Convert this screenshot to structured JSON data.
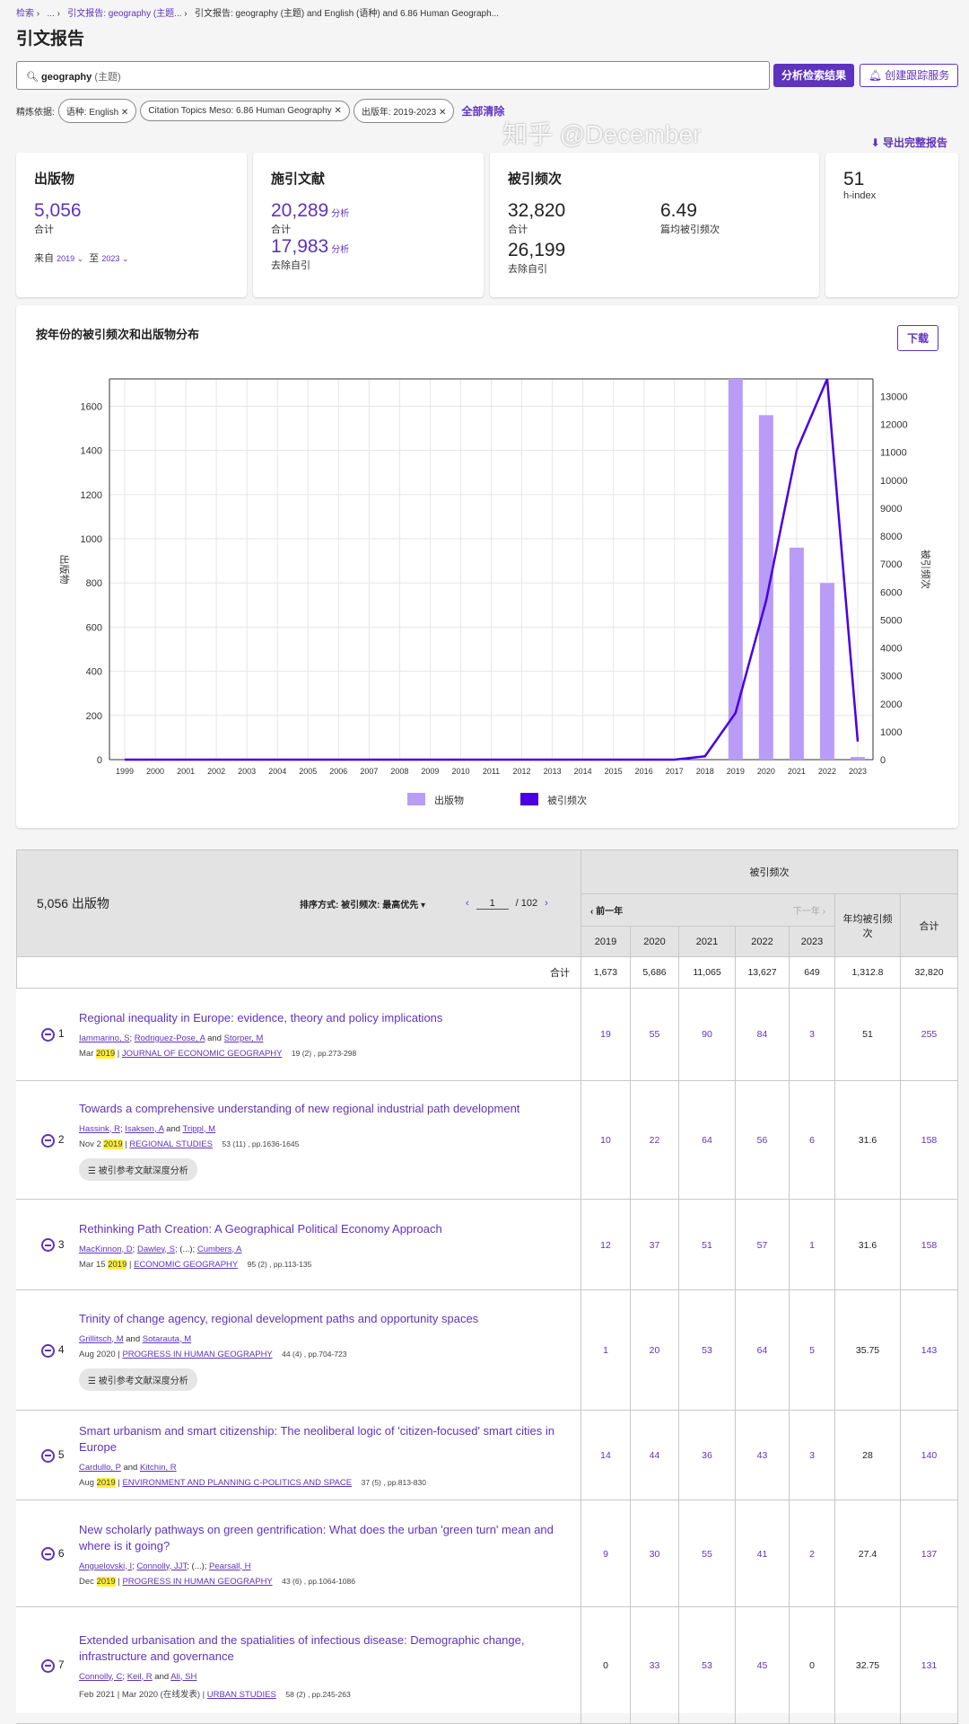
{
  "breadcrumb": [
    "检索",
    "...",
    "引文报告: geography (主题...",
    "引文报告: geography (主题) and English (语种) and 6.86 Human Geograph..."
  ],
  "page_title": "引文报告",
  "search": {
    "term": "geography",
    "field": "(主题)",
    "analyze_label": "分析检索结果",
    "alert_label": "创建跟踪服务"
  },
  "filters": {
    "label": "精炼依据:",
    "chips": [
      "语种: English",
      "Citation Topics Meso: 6.86 Human Geography",
      "出版年: 2019-2023"
    ],
    "clear_label": "全部清除"
  },
  "export_label": "导出完整报告",
  "cards": {
    "pubs": {
      "title": "出版物",
      "value": "5,056",
      "sub": "合计",
      "from_label": "来自",
      "from": "2019",
      "to_label": "至",
      "to": "2023"
    },
    "citing": {
      "title": "施引文献",
      "value": "20,289",
      "value_link": "分析",
      "sub": "合计",
      "value2": "17,983",
      "value2_link": "分析",
      "sub2": "去除自引"
    },
    "cites": {
      "title": "被引频次",
      "value": "32,820",
      "sub": "合计",
      "avg": "6.49",
      "avg_label": "篇均被引频次",
      "value2": "26,199",
      "sub2": "去除自引"
    },
    "hindex": {
      "value": "51",
      "label": "h-index"
    }
  },
  "chart_section": {
    "title": "按年份的被引频次和出版物分布",
    "download_label": "下载"
  },
  "chart_data": {
    "type": "bar+line",
    "categories": [
      "1999",
      "2000",
      "2001",
      "2002",
      "2003",
      "2004",
      "2005",
      "2006",
      "2007",
      "2008",
      "2009",
      "2010",
      "2011",
      "2012",
      "2013",
      "2014",
      "2015",
      "2016",
      "2017",
      "2018",
      "2019",
      "2020",
      "2021",
      "2022",
      "2023"
    ],
    "series": [
      {
        "name": "出版物",
        "type": "bar",
        "axis": "left",
        "color": "#b99cf7",
        "values": [
          0,
          0,
          0,
          0,
          0,
          0,
          0,
          0,
          0,
          0,
          0,
          0,
          0,
          0,
          0,
          0,
          0,
          0,
          0,
          0,
          1724,
          1560,
          960,
          800,
          12
        ]
      },
      {
        "name": "被引频次",
        "type": "line",
        "axis": "right",
        "color": "#4a00e0",
        "values": [
          0,
          0,
          0,
          0,
          0,
          0,
          0,
          0,
          0,
          0,
          0,
          0,
          0,
          0,
          0,
          0,
          0,
          0,
          0,
          120,
          1673,
          5686,
          11065,
          13627,
          649
        ]
      }
    ],
    "ylabel_left": "出版物",
    "ylabel_right": "被引频次",
    "ylim_left": [
      0,
      1724
    ],
    "yticks_left": [
      0,
      200,
      400,
      600,
      800,
      1000,
      1200,
      1400,
      1600
    ],
    "ylim_right": [
      0,
      13627
    ],
    "yticks_right": [
      0,
      1000,
      2000,
      3000,
      4000,
      5000,
      6000,
      7000,
      8000,
      9000,
      10000,
      11000,
      12000,
      13000
    ],
    "grid": true,
    "legend": "bottom"
  },
  "table": {
    "count_label": "5,056 出版物",
    "sort_label": "排序方式: 被引频次: 最高优先",
    "page": "1",
    "pages": "/ 102",
    "cites_header": "被引频次",
    "prev_year": "前一年",
    "next_year": "下一年",
    "years": [
      "2019",
      "2020",
      "2021",
      "2022",
      "2023"
    ],
    "avg_header": "年均被引频次",
    "total_header": "合计",
    "totals_label": "合计",
    "totals": [
      "1,673",
      "5,686",
      "11,065",
      "13,627",
      "649",
      "1,312.8",
      "32,820"
    ],
    "deep_label": "被引参考文献深度分析",
    "rows": [
      {
        "n": "1",
        "title": "Regional inequality in Europe: evidence, theory and policy implications",
        "authors": [
          "Iammarino, S",
          "Rodriguez-Pose, A",
          "Storper, M"
        ],
        "auth_sep": [
          "; ",
          " and "
        ],
        "date": "Mar",
        "year": "2019",
        "journal": "JOURNAL OF ECONOMIC GEOGRAPHY",
        "vol": "19 (2) , pp.273-298",
        "cites": [
          "19",
          "55",
          "90",
          "84",
          "3"
        ],
        "avg": "51",
        "total": "255",
        "deep": false
      },
      {
        "n": "2",
        "title": "Towards a comprehensive understanding of new regional industrial path development",
        "authors": [
          "Hassink, R",
          "Isaksen, A",
          "Trippl, M"
        ],
        "auth_sep": [
          "; ",
          " and "
        ],
        "date": "Nov 2",
        "year": "2019",
        "journal": "REGIONAL STUDIES",
        "vol": "53 (11) , pp.1636-1645",
        "cites": [
          "10",
          "22",
          "64",
          "56",
          "6"
        ],
        "avg": "31.6",
        "total": "158",
        "deep": true
      },
      {
        "n": "3",
        "title": "Rethinking Path Creation: A Geographical Political Economy Approach",
        "authors": [
          "MacKinnon, D",
          "Dawley, S",
          "Cumbers, A"
        ],
        "auth_sep": [
          "; ",
          "; (...); "
        ],
        "date": "Mar 15",
        "year": "2019",
        "journal": "ECONOMIC GEOGRAPHY",
        "vol": "95 (2) , pp.113-135",
        "cites": [
          "12",
          "37",
          "51",
          "57",
          "1"
        ],
        "avg": "31.6",
        "total": "158",
        "deep": false
      },
      {
        "n": "4",
        "title": "Trinity of change agency, regional development paths and opportunity spaces",
        "authors": [
          "Grillitsch, M",
          "Sotarauta, M"
        ],
        "auth_sep": [
          " and "
        ],
        "date": "Aug 2020",
        "year": "",
        "journal": "PROGRESS IN HUMAN GEOGRAPHY",
        "vol": "44 (4) , pp.704-723",
        "cites": [
          "1",
          "20",
          "53",
          "64",
          "5"
        ],
        "avg": "35.75",
        "total": "143",
        "deep": true
      },
      {
        "n": "5",
        "title": "Smart urbanism and smart citizenship: The neoliberal logic of 'citizen-focused' smart cities in Europe",
        "authors": [
          "Cardullo, P",
          "Kitchin, R"
        ],
        "auth_sep": [
          " and "
        ],
        "date": "Aug",
        "year": "2019",
        "journal": "ENVIRONMENT AND PLANNING C-POLITICS AND SPACE",
        "vol": "37 (5) , pp.813-830",
        "cites": [
          "14",
          "44",
          "36",
          "43",
          "3"
        ],
        "avg": "28",
        "total": "140",
        "deep": false
      },
      {
        "n": "6",
        "title": "New scholarly pathways on green gentrification: What does the urban 'green turn' mean and where is it going?",
        "authors": [
          "Anguelovski, I",
          "Connolly, JJT",
          "Pearsall, H"
        ],
        "auth_sep": [
          "; ",
          "; (...); "
        ],
        "date": "Dec",
        "year": "2019",
        "journal": "PROGRESS IN HUMAN GEOGRAPHY",
        "vol": "43 (6) , pp.1064-1086",
        "cites": [
          "9",
          "30",
          "55",
          "41",
          "2"
        ],
        "avg": "27.4",
        "total": "137",
        "deep": false
      },
      {
        "n": "7",
        "title": "Extended urbanisation and the spatialities of infectious disease: Demographic change, infrastructure and governance",
        "authors": [
          "Connolly, C",
          "Keil, R",
          "Ali, SH"
        ],
        "auth_sep": [
          "; ",
          " and "
        ],
        "date": "Feb 2021 | Mar 2020 (在线发表)",
        "year": "",
        "journal": "URBAN STUDIES",
        "vol": "58 (2) , pp.245-263",
        "cites": [
          "0",
          "33",
          "53",
          "45",
          "0"
        ],
        "avg": "32.75",
        "total": "131",
        "deep": false
      }
    ]
  },
  "watermark": "知乎 @December",
  "colors": {
    "accent": "#5e33bf",
    "bar": "#b99cf7",
    "line": "#4a00e0",
    "highlight": "#ffef3a"
  }
}
